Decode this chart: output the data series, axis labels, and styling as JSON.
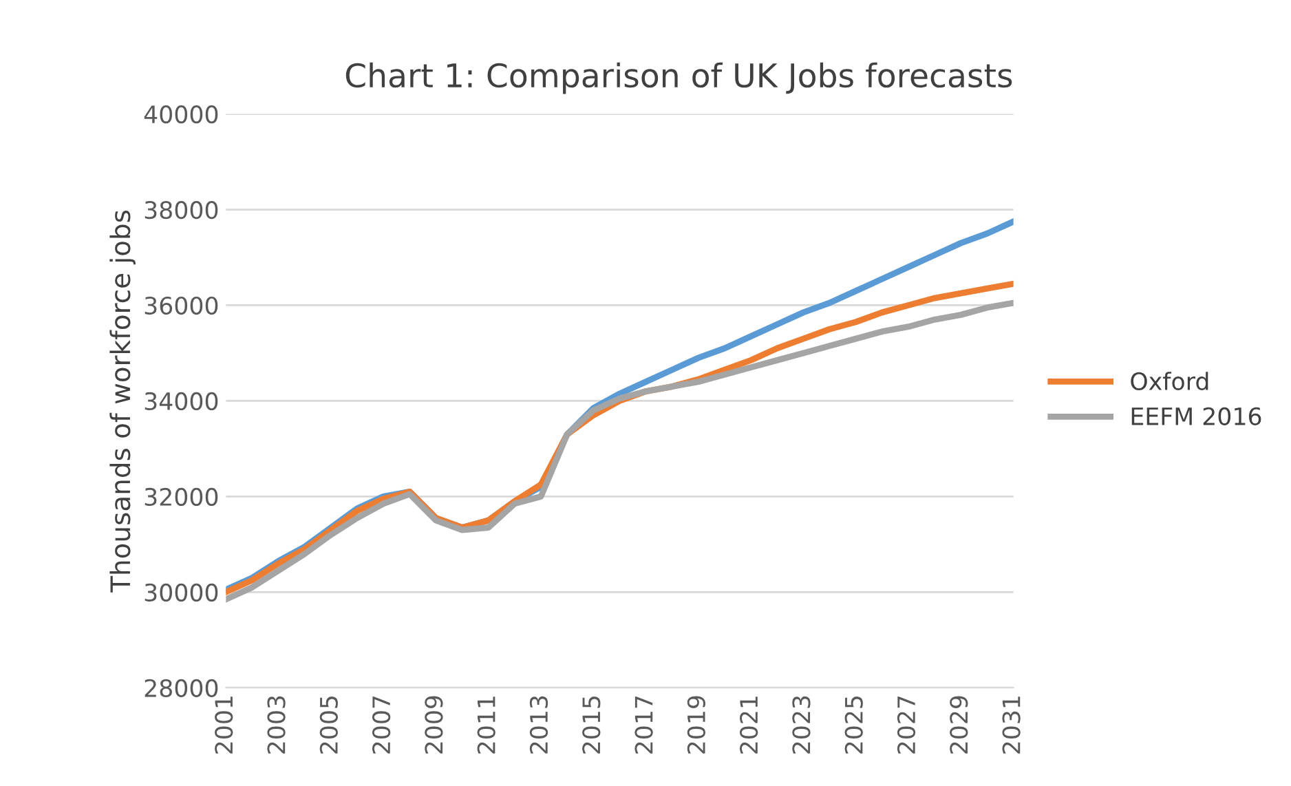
{
  "chart_data": {
    "type": "line",
    "title": "Chart 1: Comparison of UK Jobs forecasts",
    "ylabel": "Thousands of workforce jobs",
    "x": [
      2001,
      2002,
      2003,
      2004,
      2005,
      2006,
      2007,
      2008,
      2009,
      2010,
      2011,
      2012,
      2013,
      2014,
      2015,
      2016,
      2017,
      2018,
      2019,
      2020,
      2021,
      2022,
      2023,
      2024,
      2025,
      2026,
      2027,
      2028,
      2029,
      2030,
      2031
    ],
    "series": [
      {
        "color": "#5b9bd5",
        "values": [
          30050,
          30300,
          30650,
          30950,
          31350,
          31750,
          32000,
          32100,
          31550,
          31350,
          31500,
          31900,
          32200,
          33300,
          33850,
          34150,
          34400,
          34650,
          34900,
          35100,
          35350,
          35600,
          35850,
          36050,
          36300,
          36550,
          36800,
          37050,
          37300,
          37500,
          37750
        ]
      },
      {
        "name": "Oxford",
        "color": "#ed7d31",
        "values": [
          30000,
          30250,
          30600,
          30900,
          31300,
          31700,
          31950,
          32100,
          31550,
          31350,
          31500,
          31900,
          32250,
          33300,
          33700,
          34000,
          34200,
          34300,
          34450,
          34650,
          34850,
          35100,
          35300,
          35500,
          35650,
          35850,
          36000,
          36150,
          36250,
          36350,
          36450
        ]
      },
      {
        "name": "EEFM 2016",
        "color": "#a5a5a5",
        "values": [
          29850,
          30100,
          30450,
          30800,
          31200,
          31550,
          31850,
          32050,
          31500,
          31300,
          31350,
          31850,
          32000,
          33300,
          33800,
          34050,
          34200,
          34300,
          34400,
          34550,
          34700,
          34850,
          35000,
          35150,
          35300,
          35450,
          35550,
          35700,
          35800,
          35950,
          36050
        ]
      }
    ],
    "xlim": [
      2001,
      2031
    ],
    "xticks": [
      2001,
      2003,
      2005,
      2007,
      2009,
      2011,
      2013,
      2015,
      2017,
      2019,
      2021,
      2023,
      2025,
      2027,
      2029,
      2031
    ],
    "ylim": [
      28000,
      40000
    ],
    "yticks": [
      28000,
      30000,
      32000,
      34000,
      36000,
      38000,
      40000
    ],
    "grid": "y",
    "legend": "right",
    "marker": "none",
    "line_style": "solid"
  }
}
